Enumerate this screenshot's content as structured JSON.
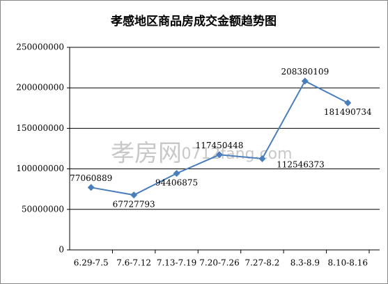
{
  "chart_data": {
    "type": "line",
    "title": "孝感地区商品房成交金额趋势图",
    "categories": [
      "6.29-7.5",
      "7.6-7.12",
      "7.13-7.19",
      "7.20-7.26",
      "7.27-8.2",
      "8.3-8.9",
      "8.10-8.16"
    ],
    "values": [
      77060889,
      67727793,
      94406875,
      117450448,
      112546373,
      208380109,
      181490734
    ],
    "color": "#4a7ebb",
    "ylim": [
      0,
      250000000
    ],
    "yticks": [
      0,
      50000000,
      100000000,
      150000000,
      200000000,
      250000000
    ],
    "grid": true,
    "annotations": [
      "孝房网",
      "0712fang.com"
    ]
  }
}
